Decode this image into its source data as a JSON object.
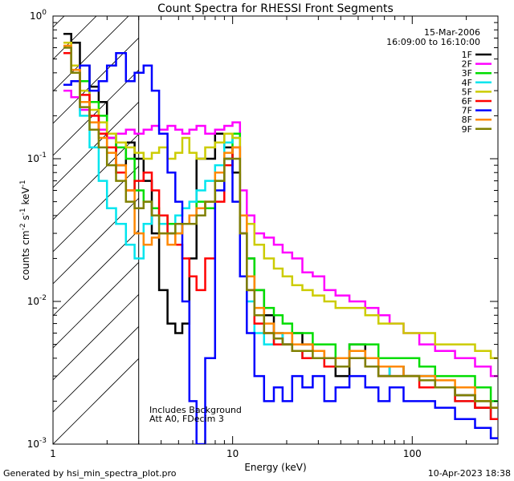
{
  "chart_data": {
    "type": "line",
    "title": "Count Spectra for RHESSI Front Segments",
    "xlabel": "Energy (keV)",
    "ylabel_parts": {
      "base": "counts cm",
      "exp1": "-2",
      "mid1": " s",
      "exp2": "-1",
      "mid2": " keV",
      "exp3": "-1"
    },
    "xlim": [
      1,
      300
    ],
    "ylim": [
      0.001,
      1
    ],
    "xscale": "log",
    "yscale": "log",
    "grid": false,
    "legend_placement": "top-right",
    "x_ticks": [
      "1",
      "10",
      "100"
    ],
    "y_ticks": [
      {
        "base": "10",
        "exp": "-3",
        "value": 0.001
      },
      {
        "base": "10",
        "exp": "-2",
        "value": 0.01
      },
      {
        "base": "10",
        "exp": "-1",
        "value": 0.1
      },
      {
        "base": "10",
        "exp": "0",
        "value": 1
      }
    ],
    "annotations": {
      "date": "15-Mar-2006",
      "time_range": "16:09:00 to 16:10:00",
      "note1": "Includes Background",
      "note2": "Att A0, FDecim 3"
    },
    "shaded_region": {
      "x_from": 1,
      "x_to": 3
    },
    "series": [
      {
        "name": "1F",
        "color": "#000000",
        "x": [
          1.2,
          1.33,
          1.5,
          1.7,
          1.9,
          2.1,
          2.4,
          2.7,
          3.0,
          3.4,
          3.7,
          4.1,
          4.6,
          5.0,
          5.5,
          6.0,
          6.6,
          7.5,
          8.5,
          9.5,
          10.5,
          11.5,
          12.5,
          14,
          16,
          18,
          20,
          23,
          26,
          30,
          35,
          40,
          50,
          60,
          70,
          80,
          100,
          120,
          150,
          200,
          250,
          300
        ],
        "y": [
          0.75,
          0.65,
          0.45,
          0.32,
          0.25,
          0.14,
          0.09,
          0.13,
          0.1,
          0.07,
          0.03,
          0.012,
          0.007,
          0.006,
          0.007,
          0.02,
          0.1,
          0.1,
          0.15,
          0.12,
          0.08,
          0.03,
          0.02,
          0.012,
          0.008,
          0.006,
          0.005,
          0.006,
          0.005,
          0.0045,
          0.004,
          0.003,
          0.005,
          0.004,
          0.003,
          0.0035,
          0.003,
          0.003,
          0.0025,
          0.0022,
          0.0018,
          0.0015
        ]
      },
      {
        "name": "2F",
        "color": "#ff00ff",
        "x": [
          1.2,
          1.33,
          1.5,
          1.7,
          1.9,
          2.1,
          2.4,
          2.7,
          3.0,
          3.4,
          3.7,
          4.1,
          4.6,
          5.0,
          5.5,
          6.0,
          6.6,
          7.5,
          8.5,
          9.5,
          10.5,
          11.5,
          12.5,
          14,
          16,
          18,
          20,
          23,
          26,
          30,
          35,
          40,
          50,
          60,
          70,
          80,
          100,
          120,
          150,
          200,
          250,
          300
        ],
        "y": [
          0.3,
          0.27,
          0.22,
          0.2,
          0.16,
          0.14,
          0.15,
          0.16,
          0.15,
          0.16,
          0.17,
          0.16,
          0.17,
          0.16,
          0.15,
          0.16,
          0.17,
          0.15,
          0.16,
          0.17,
          0.18,
          0.06,
          0.04,
          0.03,
          0.028,
          0.025,
          0.022,
          0.02,
          0.016,
          0.015,
          0.012,
          0.011,
          0.01,
          0.009,
          0.008,
          0.007,
          0.006,
          0.005,
          0.0045,
          0.004,
          0.0035,
          0.003
        ]
      },
      {
        "name": "3F",
        "color": "#00dd00",
        "x": [
          1.2,
          1.33,
          1.5,
          1.7,
          1.9,
          2.1,
          2.4,
          2.7,
          3.0,
          3.4,
          3.7,
          4.1,
          4.6,
          5.0,
          5.5,
          6.0,
          6.6,
          7.5,
          8.5,
          9.5,
          10.5,
          11.5,
          12.5,
          14,
          16,
          18,
          20,
          23,
          26,
          30,
          35,
          40,
          50,
          60,
          70,
          80,
          100,
          120,
          150,
          200,
          250,
          300
        ],
        "y": [
          0.55,
          0.4,
          0.35,
          0.25,
          0.2,
          0.15,
          0.12,
          0.1,
          0.06,
          0.05,
          0.045,
          0.04,
          0.035,
          0.03,
          0.035,
          0.04,
          0.05,
          0.045,
          0.07,
          0.1,
          0.15,
          0.04,
          0.02,
          0.012,
          0.009,
          0.008,
          0.007,
          0.006,
          0.006,
          0.005,
          0.005,
          0.004,
          0.005,
          0.005,
          0.004,
          0.004,
          0.004,
          0.0035,
          0.003,
          0.003,
          0.0025,
          0.002
        ]
      },
      {
        "name": "4F",
        "color": "#00e5ee",
        "x": [
          1.2,
          1.33,
          1.5,
          1.7,
          1.9,
          2.1,
          2.4,
          2.7,
          3.0,
          3.4,
          3.7,
          4.1,
          4.6,
          5.0,
          5.5,
          6.0,
          6.6,
          7.5,
          8.5,
          9.5,
          10.5,
          11.5,
          12.5,
          14,
          16,
          18,
          20,
          23,
          26,
          30,
          35,
          40,
          50,
          60,
          70,
          80,
          100,
          120,
          150,
          200,
          250,
          300
        ],
        "y": [
          0.55,
          0.4,
          0.2,
          0.12,
          0.07,
          0.045,
          0.035,
          0.025,
          0.02,
          0.035,
          0.04,
          0.035,
          0.03,
          0.04,
          0.045,
          0.05,
          0.06,
          0.07,
          0.09,
          0.13,
          0.14,
          0.03,
          0.01,
          0.006,
          0.005,
          0.006,
          0.005,
          0.0045,
          0.004,
          0.004,
          0.0035,
          0.004,
          0.004,
          0.0035,
          0.003,
          0.0035,
          0.003,
          0.003,
          0.0025,
          0.002,
          0.002,
          0.0015
        ]
      },
      {
        "name": "5F",
        "color": "#cccc00",
        "x": [
          1.2,
          1.33,
          1.5,
          1.7,
          1.9,
          2.1,
          2.4,
          2.7,
          3.0,
          3.4,
          3.7,
          4.1,
          4.6,
          5.0,
          5.5,
          6.0,
          6.6,
          7.5,
          8.5,
          9.5,
          10.5,
          11.5,
          12.5,
          14,
          16,
          18,
          20,
          23,
          26,
          30,
          35,
          40,
          50,
          60,
          70,
          80,
          100,
          120,
          150,
          200,
          250,
          300
        ],
        "y": [
          0.65,
          0.45,
          0.3,
          0.22,
          0.18,
          0.15,
          0.13,
          0.12,
          0.11,
          0.1,
          0.11,
          0.12,
          0.1,
          0.11,
          0.14,
          0.11,
          0.1,
          0.12,
          0.13,
          0.15,
          0.14,
          0.04,
          0.035,
          0.025,
          0.02,
          0.017,
          0.015,
          0.013,
          0.012,
          0.011,
          0.01,
          0.009,
          0.009,
          0.008,
          0.007,
          0.007,
          0.006,
          0.006,
          0.005,
          0.005,
          0.0045,
          0.004
        ]
      },
      {
        "name": "6F",
        "color": "#ff0000",
        "x": [
          1.2,
          1.33,
          1.5,
          1.7,
          1.9,
          2.1,
          2.4,
          2.7,
          3.0,
          3.4,
          3.7,
          4.1,
          4.6,
          5.0,
          5.5,
          6.0,
          6.6,
          7.5,
          8.5,
          9.5,
          10.5,
          11.5,
          12.5,
          14,
          16,
          18,
          20,
          23,
          26,
          30,
          35,
          40,
          50,
          60,
          70,
          80,
          100,
          120,
          150,
          200,
          250,
          300
        ],
        "y": [
          0.55,
          0.4,
          0.28,
          0.2,
          0.15,
          0.12,
          0.08,
          0.06,
          0.07,
          0.08,
          0.06,
          0.04,
          0.03,
          0.025,
          0.02,
          0.015,
          0.012,
          0.02,
          0.05,
          0.09,
          0.12,
          0.03,
          0.012,
          0.007,
          0.006,
          0.005,
          0.005,
          0.0045,
          0.004,
          0.004,
          0.0035,
          0.0035,
          0.004,
          0.0035,
          0.003,
          0.003,
          0.003,
          0.0025,
          0.0025,
          0.002,
          0.0018,
          0.0015
        ]
      },
      {
        "name": "7F",
        "color": "#0000ff",
        "x": [
          1.2,
          1.33,
          1.5,
          1.7,
          1.9,
          2.1,
          2.4,
          2.7,
          3.0,
          3.4,
          3.7,
          4.1,
          4.6,
          5.0,
          5.5,
          6.0,
          6.6,
          7.5,
          8.5,
          9.5,
          10.5,
          11.5,
          12.5,
          14,
          16,
          18,
          20,
          23,
          26,
          30,
          35,
          40,
          50,
          60,
          70,
          80,
          100,
          120,
          150,
          200,
          250,
          300
        ],
        "y": [
          0.33,
          0.35,
          0.45,
          0.3,
          0.35,
          0.45,
          0.55,
          0.35,
          0.4,
          0.45,
          0.3,
          0.15,
          0.08,
          0.05,
          0.01,
          0.002,
          0.001,
          0.004,
          0.06,
          0.1,
          0.05,
          0.015,
          0.006,
          0.003,
          0.002,
          0.0025,
          0.002,
          0.003,
          0.0025,
          0.003,
          0.002,
          0.0025,
          0.003,
          0.0025,
          0.002,
          0.0025,
          0.002,
          0.002,
          0.0018,
          0.0015,
          0.0013,
          0.0011
        ]
      },
      {
        "name": "8F",
        "color": "#ff8800",
        "x": [
          1.2,
          1.33,
          1.5,
          1.7,
          1.9,
          2.1,
          2.4,
          2.7,
          3.0,
          3.4,
          3.7,
          4.1,
          4.6,
          5.0,
          5.5,
          6.0,
          6.6,
          7.5,
          8.5,
          9.5,
          10.5,
          11.5,
          12.5,
          14,
          16,
          18,
          20,
          23,
          26,
          30,
          35,
          40,
          50,
          60,
          70,
          80,
          100,
          120,
          150,
          200,
          250,
          300
        ],
        "y": [
          0.62,
          0.42,
          0.25,
          0.18,
          0.14,
          0.11,
          0.09,
          0.06,
          0.03,
          0.025,
          0.028,
          0.03,
          0.025,
          0.03,
          0.035,
          0.04,
          0.045,
          0.05,
          0.08,
          0.11,
          0.12,
          0.04,
          0.015,
          0.009,
          0.007,
          0.006,
          0.006,
          0.005,
          0.005,
          0.0045,
          0.004,
          0.004,
          0.0045,
          0.004,
          0.0035,
          0.0035,
          0.003,
          0.003,
          0.0028,
          0.0025,
          0.002,
          0.0018
        ]
      },
      {
        "name": "9F",
        "color": "#808000",
        "x": [
          1.2,
          1.33,
          1.5,
          1.7,
          1.9,
          2.1,
          2.4,
          2.7,
          3.0,
          3.4,
          3.7,
          4.1,
          4.6,
          5.0,
          5.5,
          6.0,
          6.6,
          7.5,
          8.5,
          9.5,
          10.5,
          11.5,
          12.5,
          14,
          16,
          18,
          20,
          23,
          26,
          30,
          35,
          40,
          50,
          60,
          70,
          80,
          100,
          120,
          150,
          200,
          250,
          300
        ],
        "y": [
          0.6,
          0.4,
          0.23,
          0.16,
          0.12,
          0.09,
          0.07,
          0.05,
          0.045,
          0.05,
          0.04,
          0.03,
          0.03,
          0.035,
          0.035,
          0.035,
          0.04,
          0.05,
          0.07,
          0.1,
          0.1,
          0.03,
          0.012,
          0.008,
          0.006,
          0.0055,
          0.005,
          0.0045,
          0.0045,
          0.004,
          0.004,
          0.0035,
          0.004,
          0.0035,
          0.003,
          0.003,
          0.003,
          0.0028,
          0.0025,
          0.0022,
          0.002,
          0.0018
        ]
      }
    ]
  },
  "footer": {
    "generated_by": "Generated by hsi_min_spectra_plot.pro",
    "timestamp": "10-Apr-2023 18:38"
  }
}
